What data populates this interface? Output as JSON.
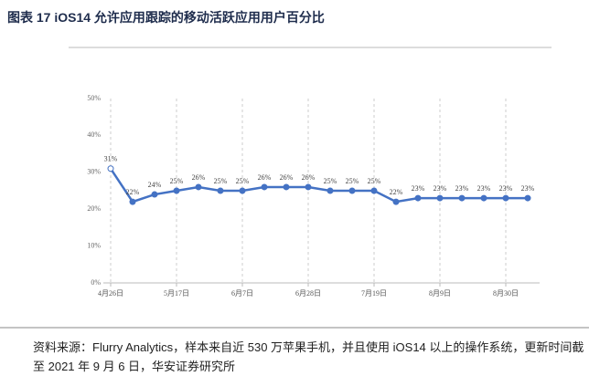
{
  "chart_data": {
    "type": "line",
    "title": "图表 17 iOS14 允许应用跟踪的移动活跃应用用户百分比",
    "categories": [
      "4月26日",
      null,
      null,
      "5月17日",
      null,
      null,
      "6月7日",
      null,
      null,
      "6月28日",
      null,
      null,
      "7月19日",
      null,
      null,
      "8月9日",
      null,
      null,
      "8月30日",
      null
    ],
    "series": [
      {
        "color": "#4472c4",
        "values": [
          31,
          22,
          24,
          25,
          26,
          25,
          25,
          26,
          26,
          26,
          25,
          25,
          25,
          22,
          23,
          23,
          23,
          23,
          23,
          23
        ],
        "value_labels": [
          "31%",
          "22%",
          "24%",
          "25%",
          "26%",
          "25%",
          "25%",
          "26%",
          "26%",
          "26%",
          "25%",
          "25%",
          "25%",
          "22%",
          "23%",
          "23%",
          "23%",
          "23%",
          "23%",
          "23%"
        ]
      }
    ],
    "ylim": [
      0,
      50
    ],
    "yticks": [
      {
        "value": 0,
        "label": "0%"
      },
      {
        "value": 10,
        "label": "10%"
      },
      {
        "value": 20,
        "label": "20%"
      },
      {
        "value": 30,
        "label": "30%"
      },
      {
        "value": 40,
        "label": "40%"
      },
      {
        "value": 50,
        "label": "50%"
      }
    ],
    "grid": true,
    "source": "资料来源：Flurry Analytics，样本来自近 530 万苹果手机，并且使用 iOS14 以上的操作系统，更新时间截至 2021 年 9 月 6 日，华安证券研究所"
  }
}
